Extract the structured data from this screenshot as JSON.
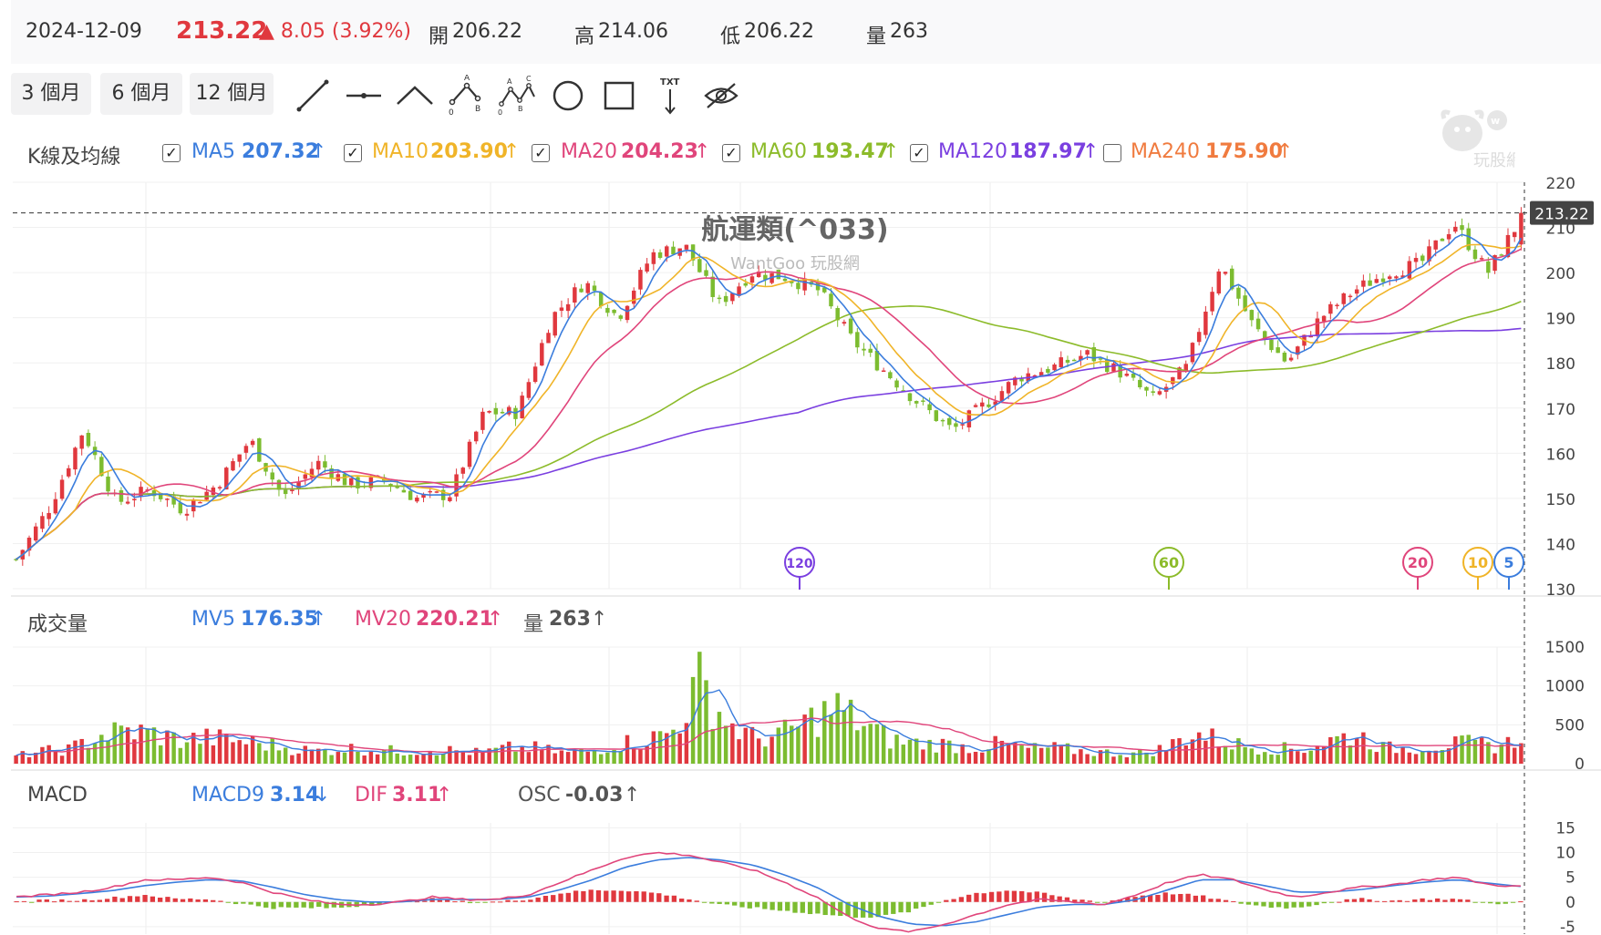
{
  "quote": {
    "date": "2024-12-09",
    "price": "213.22",
    "change": "▲ 8.05 (3.92%)",
    "open_label": "開",
    "open": "206.22",
    "high_label": "高",
    "high": "214.06",
    "low_label": "低",
    "low": "206.22",
    "volume_label": "量",
    "volume": "263"
  },
  "range_buttons": [
    "3 個月",
    "6 個月",
    "12 個月"
  ],
  "drawing_tools": [
    "line-tool",
    "horizontal-line-tool",
    "angle-tool",
    "abc-pattern-tool",
    "abcd-pattern-tool",
    "circle-tool",
    "rectangle-tool",
    "text-tool",
    "hide-drawings-tool"
  ],
  "tool_text": {
    "txt": "TXT",
    "a": "A",
    "b": "B",
    "c": "C",
    "zero": "0"
  },
  "ma_legend": {
    "title": "K線及均線",
    "items": [
      {
        "label": "MA5",
        "value": "207.32",
        "checked": true,
        "color": "#3b7ddd"
      },
      {
        "label": "MA10",
        "value": "203.90",
        "checked": true,
        "color": "#f0b428"
      },
      {
        "label": "MA20",
        "value": "204.23",
        "checked": true,
        "color": "#e0457b"
      },
      {
        "label": "MA60",
        "value": "193.47",
        "checked": true,
        "color": "#8cbb2a"
      },
      {
        "label": "MA120",
        "value": "187.97",
        "checked": true,
        "color": "#7a3fe0"
      },
      {
        "label": "MA240",
        "value": "175.90",
        "checked": false,
        "color": "#f07b3f"
      }
    ]
  },
  "volume_legend": {
    "title": "成交量",
    "items": [
      {
        "label": "MV5",
        "value": "176.35",
        "color": "#3b7ddd"
      },
      {
        "label": "MV20",
        "value": "220.21",
        "color": "#e0457b"
      },
      {
        "label": "量",
        "value": "263",
        "color": "#555555"
      }
    ]
  },
  "macd_legend": {
    "title": "MACD",
    "items": [
      {
        "label": "MACD9",
        "value": "3.14",
        "arrow": "↓",
        "color": "#3b7ddd"
      },
      {
        "label": "DIF",
        "value": "3.11",
        "arrow": "↑",
        "color": "#e0457b"
      },
      {
        "label": "OSC",
        "value": "-0.03",
        "arrow": "↑",
        "color": "#555555"
      }
    ]
  },
  "watermark": {
    "title": "航運類(^033)",
    "sub": "WantGoo 玩股網",
    "logo_text": "玩股網"
  },
  "chart_data": {
    "type": "candlestick",
    "price_axis": {
      "ticks": [
        130,
        140,
        150,
        160,
        170,
        180,
        190,
        200,
        210,
        220
      ],
      "ylim": [
        130,
        220
      ]
    },
    "last_price_label": "213.22",
    "ma_markers": [
      "120",
      "60",
      "20",
      "10",
      "5"
    ],
    "price_path": [
      136.5,
      148,
      165,
      149,
      152,
      147.5,
      153,
      163,
      150,
      158,
      153,
      154,
      150,
      151,
      169,
      169,
      190,
      198,
      190,
      204,
      206,
      193,
      200,
      199,
      196,
      185,
      178,
      171,
      165,
      171,
      177,
      179,
      182,
      178,
      172,
      179,
      202,
      188,
      180,
      190,
      196,
      200,
      202,
      211,
      200,
      212
    ],
    "volume_axis": {
      "ticks": [
        0,
        500,
        1000,
        1500
      ],
      "ylim": [
        0,
        1500
      ]
    },
    "volume_profile": [
      100,
      160,
      190,
      360,
      420,
      390,
      300,
      330,
      300,
      260,
      200,
      160,
      200,
      180,
      160,
      180,
      170,
      140,
      200,
      200,
      140,
      160,
      260,
      300,
      420,
      1050,
      520,
      320,
      380,
      560,
      720,
      500,
      300,
      260,
      250,
      200,
      260,
      190,
      200,
      160,
      140,
      130,
      200,
      400,
      300,
      220,
      200,
      180,
      300,
      380,
      200,
      200,
      240,
      260,
      230,
      300
    ],
    "macd_axis": {
      "ticks": [
        15,
        10,
        5,
        0,
        -5
      ],
      "ylim": [
        -6.5,
        16
      ]
    },
    "dif_profile": [
      1,
      1.5,
      2,
      3,
      4.5,
      4.5,
      5,
      4,
      2,
      0.5,
      -0.5,
      -0.5,
      0,
      1,
      0.5,
      0.5,
      1.5,
      4,
      6.5,
      9,
      10,
      9.5,
      8,
      6.5,
      4,
      1,
      -3,
      -5.5,
      -6,
      -4.5,
      -2.5,
      -0.5,
      0.5,
      0,
      -0.5,
      1.5,
      4,
      5.5,
      4.5,
      2.5,
      1,
      2,
      3,
      3.5,
      4.5,
      5,
      3.5,
      3.11
    ],
    "macd9_profile": [
      1,
      1.2,
      1.7,
      2.3,
      3.3,
      4,
      4.5,
      4.3,
      3,
      1.5,
      0.5,
      0,
      0,
      0.5,
      0.5,
      0.5,
      1,
      2.5,
      4.5,
      7,
      8.5,
      9,
      8.5,
      7.5,
      5.5,
      3,
      -0.5,
      -3,
      -4.5,
      -4.8,
      -4,
      -2.5,
      -1,
      -0.5,
      -0.5,
      0.5,
      2.5,
      4.5,
      4.5,
      3.3,
      2,
      2,
      2.5,
      3.3,
      4,
      4.5,
      3.8,
      3.14
    ]
  }
}
